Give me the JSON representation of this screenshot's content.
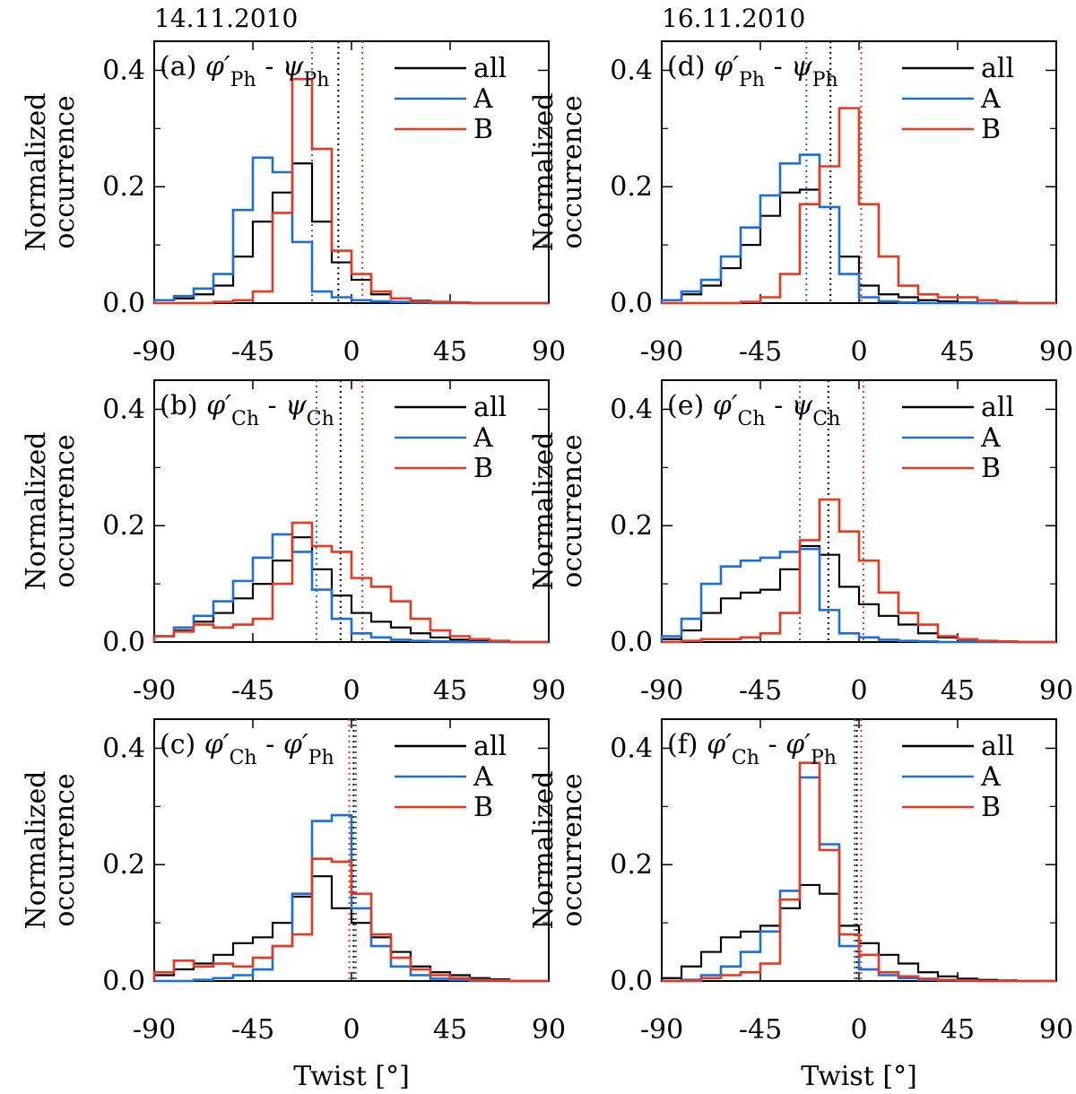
{
  "figure": {
    "dates": [
      "14.11.2010",
      "16.11.2010"
    ],
    "ylabel_lines": [
      "Normalized",
      "occurrence"
    ],
    "xlabel": "Twist [°]",
    "legend": [
      "all",
      "A",
      "B"
    ]
  },
  "colors": {
    "all": "#000000",
    "A": "#1a6fdb",
    "B": "#e8381e"
  },
  "chart_data": [
    {
      "id": "a",
      "type": "histogram-step",
      "title": "(a) φ′Ph - ψPh",
      "label": "(a)",
      "phi_sub": "Ph",
      "second_symbol": "ψ",
      "second_sub": "Ph",
      "xlim": [
        -90,
        90
      ],
      "ylim": [
        0,
        0.45
      ],
      "xticks": [
        -90,
        -45,
        0,
        45,
        90
      ],
      "yticks": [
        0.0,
        0.2,
        0.4
      ],
      "xlabel": "Twist [°]",
      "ylabel": "Normalized occurrence",
      "legend": [
        "all",
        "A",
        "B"
      ],
      "bin_width": 9,
      "bin_edges": [
        -90,
        -81,
        -72,
        -63,
        -54,
        -45,
        -36,
        -27,
        -18,
        -9,
        0,
        9,
        18,
        27,
        36,
        45,
        54,
        63,
        72,
        81,
        90
      ],
      "series": [
        {
          "name": "all",
          "values": [
            0.005,
            0.008,
            0.015,
            0.03,
            0.08,
            0.14,
            0.19,
            0.24,
            0.14,
            0.07,
            0.04,
            0.015,
            0.008,
            0.004,
            0.002,
            0.001,
            0.0,
            0.0,
            0.0,
            0.0
          ]
        },
        {
          "name": "A",
          "values": [
            0.005,
            0.012,
            0.025,
            0.05,
            0.16,
            0.25,
            0.225,
            0.105,
            0.02,
            0.01,
            0.005,
            0.003,
            0.002,
            0.001,
            0.0,
            0.0,
            0.0,
            0.0,
            0.0,
            0.0
          ]
        },
        {
          "name": "B",
          "values": [
            0.0,
            0.0,
            0.0,
            0.002,
            0.005,
            0.02,
            0.155,
            0.385,
            0.265,
            0.09,
            0.05,
            0.02,
            0.008,
            0.003,
            0.002,
            0.001,
            0.0,
            0.0,
            0.0,
            0.0
          ]
        }
      ],
      "medians": {
        "all": -6,
        "A": -18,
        "B": 5
      }
    },
    {
      "id": "b",
      "type": "histogram-step",
      "title": "(b) φ′Ch - ψCh",
      "label": "(b)",
      "phi_sub": "Ch",
      "second_symbol": "ψ",
      "second_sub": "Ch",
      "xlim": [
        -90,
        90
      ],
      "ylim": [
        0,
        0.45
      ],
      "xticks": [
        -90,
        -45,
        0,
        45,
        90
      ],
      "yticks": [
        0.0,
        0.2,
        0.4
      ],
      "xlabel": "Twist [°]",
      "ylabel": "Normalized occurrence",
      "legend": [
        "all",
        "A",
        "B"
      ],
      "bin_width": 9,
      "bin_edges": [
        -90,
        -81,
        -72,
        -63,
        -54,
        -45,
        -36,
        -27,
        -18,
        -9,
        0,
        9,
        18,
        27,
        36,
        45,
        54,
        63,
        72,
        81,
        90
      ],
      "series": [
        {
          "name": "all",
          "values": [
            0.01,
            0.02,
            0.035,
            0.05,
            0.075,
            0.1,
            0.14,
            0.18,
            0.125,
            0.08,
            0.05,
            0.035,
            0.025,
            0.015,
            0.008,
            0.004,
            0.002,
            0.001,
            0.0,
            0.0
          ]
        },
        {
          "name": "A",
          "values": [
            0.01,
            0.025,
            0.045,
            0.07,
            0.105,
            0.145,
            0.185,
            0.155,
            0.09,
            0.04,
            0.015,
            0.008,
            0.004,
            0.002,
            0.001,
            0.0,
            0.0,
            0.0,
            0.0,
            0.0
          ]
        },
        {
          "name": "B",
          "values": [
            0.01,
            0.018,
            0.03,
            0.025,
            0.03,
            0.04,
            0.1,
            0.205,
            0.165,
            0.155,
            0.11,
            0.095,
            0.07,
            0.04,
            0.02,
            0.01,
            0.005,
            0.002,
            0.0,
            0.0
          ]
        }
      ],
      "medians": {
        "all": -5,
        "A": -16,
        "B": 5
      }
    },
    {
      "id": "c",
      "type": "histogram-step",
      "title": "(c) φ′Ch - φ′Ph",
      "label": "(c)",
      "phi_sub": "Ch",
      "second_symbol": "φ′",
      "second_sub": "Ph",
      "xlim": [
        -90,
        90
      ],
      "ylim": [
        0,
        0.45
      ],
      "xticks": [
        -90,
        -45,
        0,
        45,
        90
      ],
      "yticks": [
        0.0,
        0.2,
        0.4
      ],
      "xlabel": "Twist [°]",
      "ylabel": "Normalized occurrence",
      "legend": [
        "all",
        "A",
        "B"
      ],
      "bin_width": 9,
      "bin_edges": [
        -90,
        -81,
        -72,
        -63,
        -54,
        -45,
        -36,
        -27,
        -18,
        -9,
        0,
        9,
        18,
        27,
        36,
        45,
        54,
        63,
        72,
        81,
        90
      ],
      "series": [
        {
          "name": "all",
          "values": [
            0.01,
            0.02,
            0.03,
            0.045,
            0.065,
            0.075,
            0.1,
            0.145,
            0.18,
            0.125,
            0.1,
            0.075,
            0.05,
            0.025,
            0.015,
            0.01,
            0.005,
            0.003,
            0.0,
            0.0
          ]
        },
        {
          "name": "A",
          "values": [
            0.0,
            0.0,
            0.002,
            0.005,
            0.01,
            0.02,
            0.06,
            0.15,
            0.275,
            0.285,
            0.125,
            0.06,
            0.025,
            0.01,
            0.004,
            0.002,
            0.0,
            0.0,
            0.0,
            0.0
          ]
        },
        {
          "name": "B",
          "values": [
            0.015,
            0.035,
            0.025,
            0.03,
            0.025,
            0.04,
            0.06,
            0.08,
            0.21,
            0.205,
            0.15,
            0.08,
            0.04,
            0.02,
            0.01,
            0.005,
            0.002,
            0.001,
            0.0,
            0.0
          ]
        }
      ],
      "medians": {
        "all": 1,
        "A": 2,
        "B": -1
      }
    },
    {
      "id": "d",
      "type": "histogram-step",
      "title": "(d) φ′Ph - ψPh",
      "label": "(d)",
      "phi_sub": "Ph",
      "second_symbol": "ψ",
      "second_sub": "Ph",
      "xlim": [
        -90,
        90
      ],
      "ylim": [
        0,
        0.45
      ],
      "xticks": [
        -90,
        -45,
        0,
        45,
        90
      ],
      "yticks": [
        0.0,
        0.2,
        0.4
      ],
      "xlabel": "Twist [°]",
      "ylabel": "Normalized occurrence",
      "legend": [
        "all",
        "A",
        "B"
      ],
      "bin_width": 9,
      "bin_edges": [
        -90,
        -81,
        -72,
        -63,
        -54,
        -45,
        -36,
        -27,
        -18,
        -9,
        0,
        9,
        18,
        27,
        36,
        45,
        54,
        63,
        72,
        81,
        90
      ],
      "series": [
        {
          "name": "all",
          "values": [
            0.005,
            0.015,
            0.03,
            0.06,
            0.1,
            0.15,
            0.19,
            0.195,
            0.165,
            0.08,
            0.03,
            0.015,
            0.01,
            0.005,
            0.003,
            0.001,
            0.0,
            0.0,
            0.0,
            0.0
          ]
        },
        {
          "name": "A",
          "values": [
            0.005,
            0.02,
            0.04,
            0.08,
            0.13,
            0.185,
            0.24,
            0.255,
            0.165,
            0.05,
            0.01,
            0.003,
            0.001,
            0.0,
            0.0,
            0.0,
            0.0,
            0.0,
            0.0,
            0.0
          ]
        },
        {
          "name": "B",
          "values": [
            0.0,
            0.0,
            0.0,
            0.0,
            0.002,
            0.01,
            0.05,
            0.17,
            0.235,
            0.335,
            0.17,
            0.08,
            0.03,
            0.015,
            0.01,
            0.01,
            0.005,
            0.002,
            0.0,
            0.0
          ]
        }
      ],
      "medians": {
        "all": -13,
        "A": -24,
        "B": 1
      }
    },
    {
      "id": "e",
      "type": "histogram-step",
      "title": "(e) φ′Ch - ψCh",
      "label": "(e)",
      "phi_sub": "Ch",
      "second_symbol": "ψ",
      "second_sub": "Ch",
      "xlim": [
        -90,
        90
      ],
      "ylim": [
        0,
        0.45
      ],
      "xticks": [
        -90,
        -45,
        0,
        45,
        90
      ],
      "yticks": [
        0.0,
        0.2,
        0.4
      ],
      "xlabel": "Twist [°]",
      "ylabel": "Normalized occurrence",
      "legend": [
        "all",
        "A",
        "B"
      ],
      "bin_width": 9,
      "bin_edges": [
        -90,
        -81,
        -72,
        -63,
        -54,
        -45,
        -36,
        -27,
        -18,
        -9,
        0,
        9,
        18,
        27,
        36,
        45,
        54,
        63,
        72,
        81,
        90
      ],
      "series": [
        {
          "name": "all",
          "values": [
            0.005,
            0.02,
            0.05,
            0.075,
            0.085,
            0.09,
            0.125,
            0.165,
            0.15,
            0.095,
            0.065,
            0.045,
            0.03,
            0.015,
            0.008,
            0.004,
            0.002,
            0.001,
            0.0,
            0.0
          ]
        },
        {
          "name": "A",
          "values": [
            0.01,
            0.04,
            0.1,
            0.13,
            0.14,
            0.145,
            0.155,
            0.16,
            0.055,
            0.015,
            0.008,
            0.004,
            0.002,
            0.001,
            0.0,
            0.0,
            0.0,
            0.0,
            0.0,
            0.0
          ]
        },
        {
          "name": "B",
          "values": [
            0.0,
            0.002,
            0.005,
            0.005,
            0.008,
            0.015,
            0.05,
            0.175,
            0.245,
            0.19,
            0.14,
            0.085,
            0.05,
            0.03,
            0.01,
            0.005,
            0.002,
            0.001,
            0.0,
            0.0
          ]
        }
      ],
      "medians": {
        "all": -14,
        "A": -27,
        "B": 2
      }
    },
    {
      "id": "f",
      "type": "histogram-step",
      "title": "(f) φ′Ch - φ′Ph",
      "label": "(f)",
      "phi_sub": "Ch",
      "second_symbol": "φ′",
      "second_sub": "Ph",
      "xlim": [
        -90,
        90
      ],
      "ylim": [
        0,
        0.45
      ],
      "xticks": [
        -90,
        -45,
        0,
        45,
        90
      ],
      "yticks": [
        0.0,
        0.2,
        0.4
      ],
      "xlabel": "Twist [°]",
      "ylabel": "Normalized occurrence",
      "legend": [
        "all",
        "A",
        "B"
      ],
      "bin_width": 9,
      "bin_edges": [
        -90,
        -81,
        -72,
        -63,
        -54,
        -45,
        -36,
        -27,
        -18,
        -9,
        0,
        9,
        18,
        27,
        36,
        45,
        54,
        63,
        72,
        81,
        90
      ],
      "series": [
        {
          "name": "all",
          "values": [
            0.005,
            0.025,
            0.05,
            0.075,
            0.085,
            0.095,
            0.125,
            0.165,
            0.15,
            0.095,
            0.065,
            0.045,
            0.03,
            0.015,
            0.008,
            0.004,
            0.002,
            0.001,
            0.0,
            0.0
          ]
        },
        {
          "name": "A",
          "values": [
            0.0,
            0.002,
            0.01,
            0.025,
            0.05,
            0.085,
            0.155,
            0.35,
            0.235,
            0.06,
            0.02,
            0.01,
            0.005,
            0.002,
            0.001,
            0.0,
            0.0,
            0.0,
            0.0,
            0.0
          ]
        },
        {
          "name": "B",
          "values": [
            0.0,
            0.0,
            0.005,
            0.01,
            0.015,
            0.03,
            0.14,
            0.375,
            0.225,
            0.08,
            0.045,
            0.015,
            0.008,
            0.004,
            0.002,
            0.001,
            0.0,
            0.0,
            0.0,
            0.0
          ]
        }
      ],
      "medians": {
        "all": -1,
        "A": -2,
        "B": 1
      }
    }
  ]
}
